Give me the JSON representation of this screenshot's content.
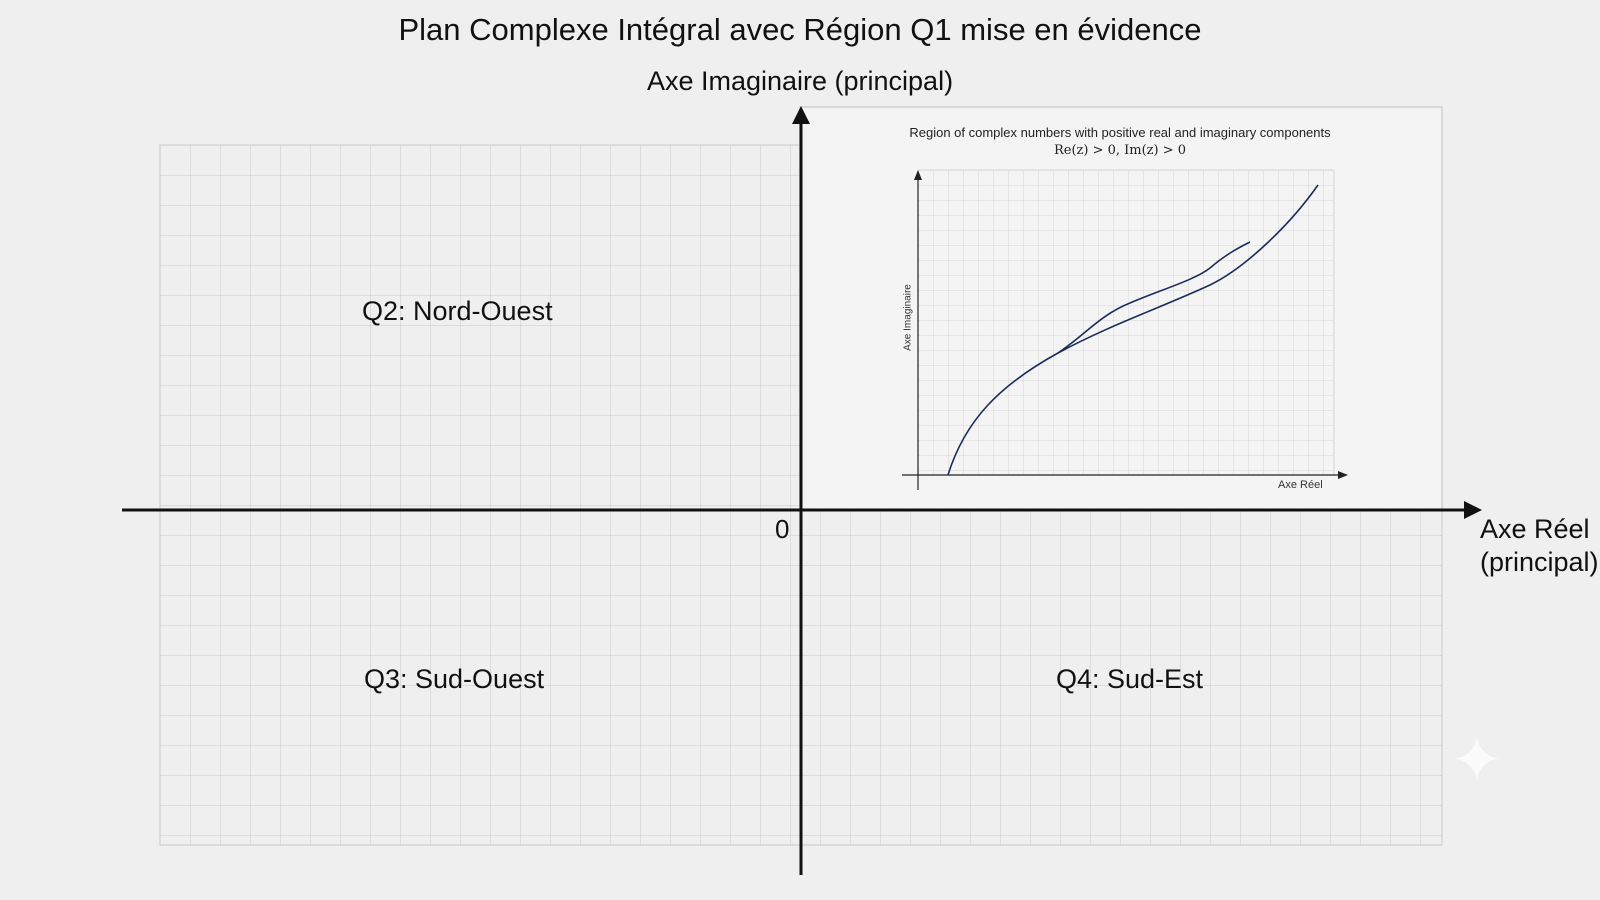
{
  "diagram": {
    "title": "Plan Complexe Intégral avec Région Q1 mise en évidence",
    "imag_axis_label": "Axe Imaginaire (principal)",
    "real_axis_label_line1": "Axe Réel",
    "real_axis_label_line2": "(principal)",
    "origin_label": "0",
    "quadrants": {
      "q2": "Q2: Nord-Ouest",
      "q3": "Q3: Sud-Ouest",
      "q4": "Q4: Sud-Est"
    }
  },
  "inset": {
    "title": "Region of complex numbers with positive real and imaginary components",
    "formula": "Re(z) > 0, Im(z) > 0",
    "y_axis_label": "Axe Imaginaire",
    "x_axis_label": "Axe Réel"
  },
  "colors": {
    "background": "#efefef",
    "grid": "#c9c9c9",
    "axis": "#111111",
    "curve": "#1c2b5a"
  },
  "decor": {
    "sparkle_icon": "sparkle-icon"
  }
}
